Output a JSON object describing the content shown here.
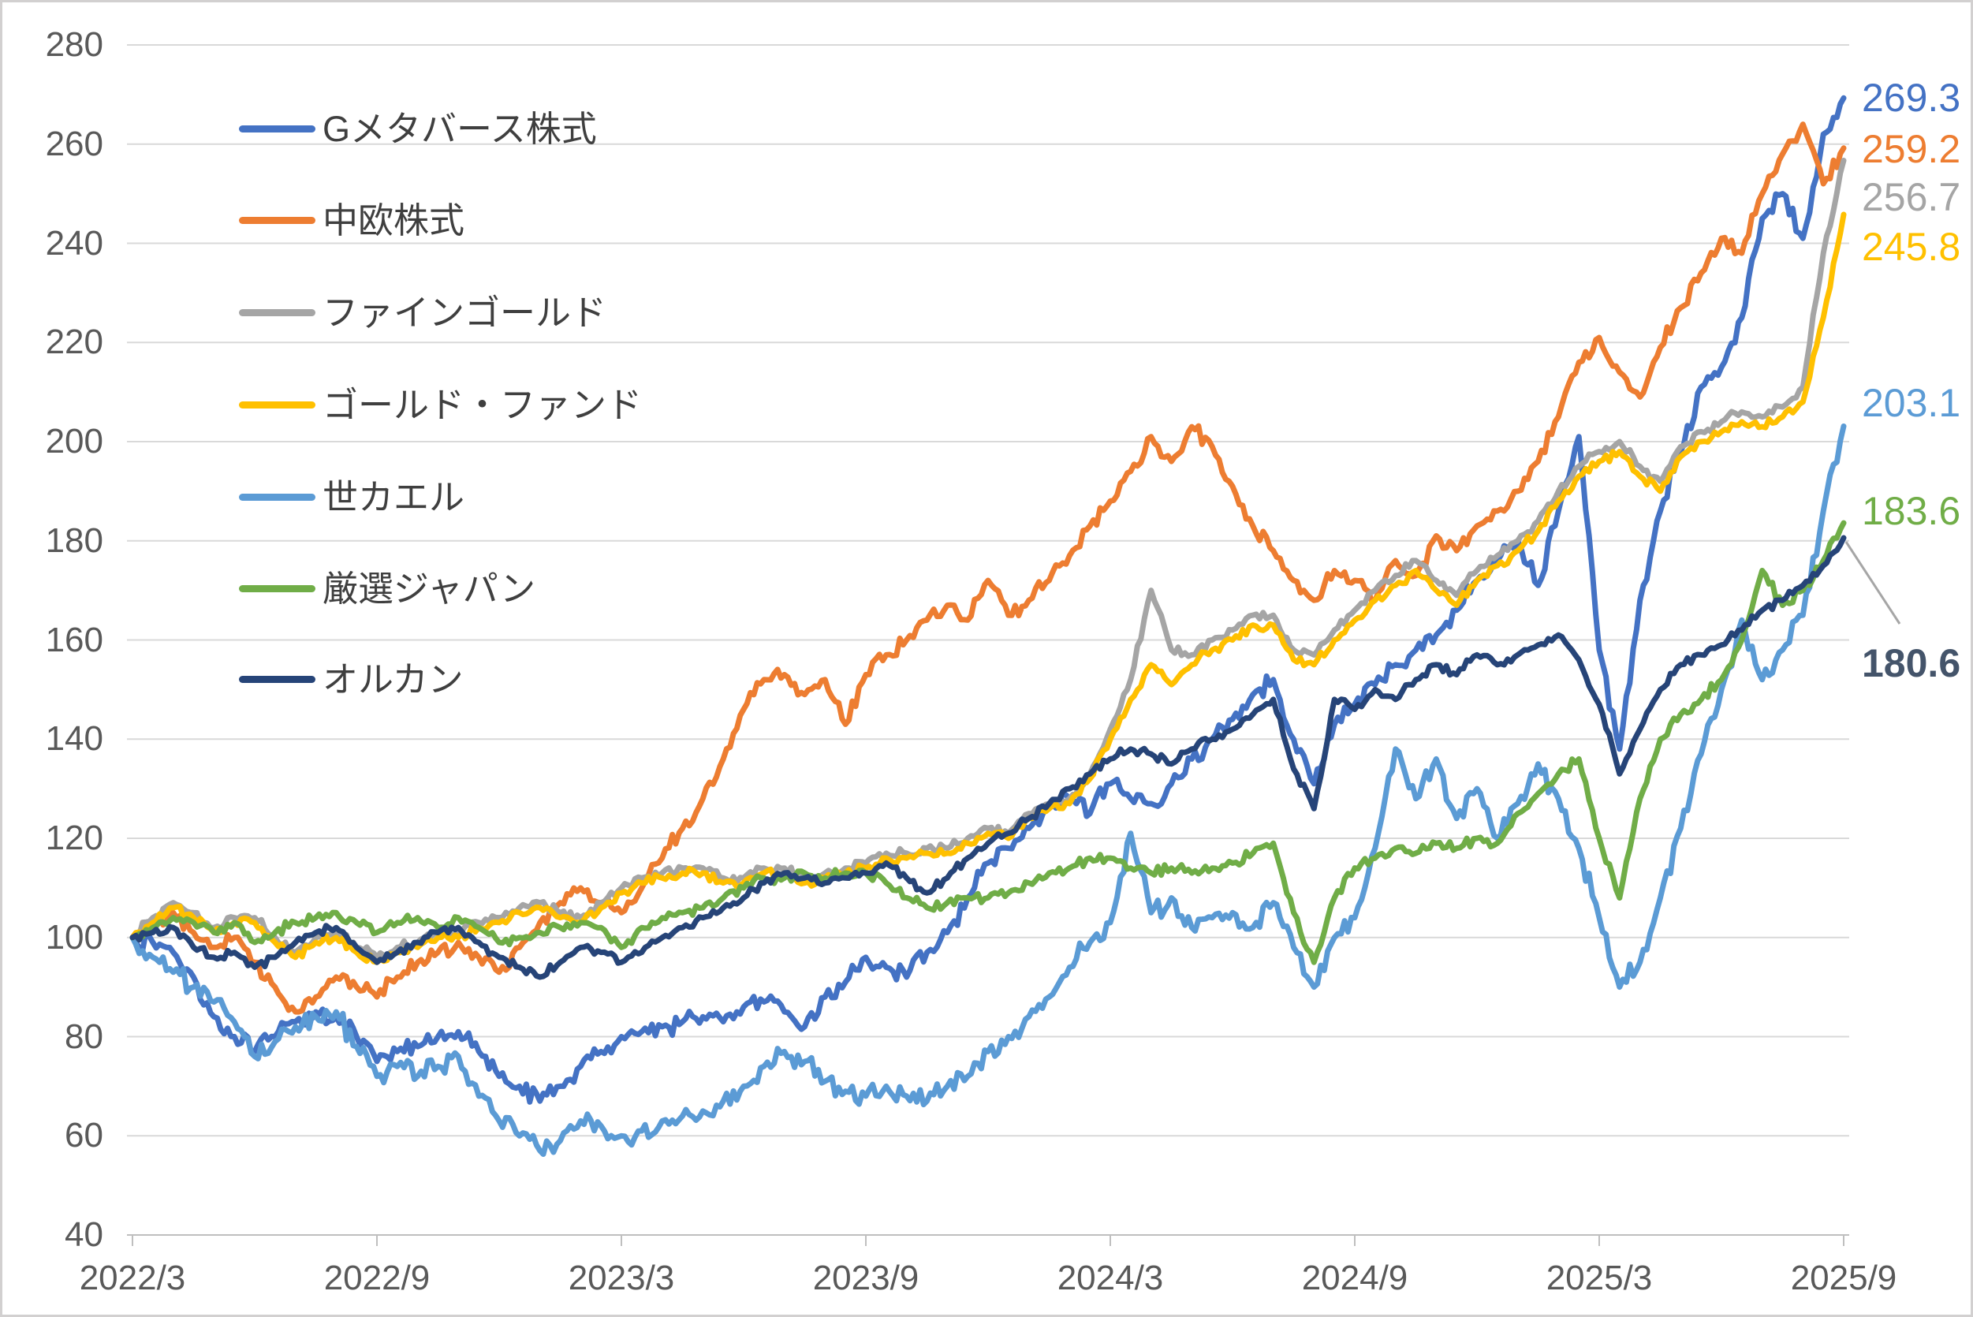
{
  "chart_data": {
    "type": "line",
    "title": "",
    "xlabel": "",
    "ylabel": "",
    "grid": true,
    "legend_position": "overlay-top-left",
    "x_axis": {
      "tick_labels": [
        "2022/3",
        "2022/9",
        "2023/3",
        "2023/9",
        "2024/3",
        "2024/9",
        "2025/3",
        "2025/9"
      ],
      "start": "2022/3",
      "end": "2025/9",
      "points_interval": "semi-monthly"
    },
    "y_axis": {
      "min": 40,
      "max": 280,
      "tick_step": 20,
      "tick_labels": [
        "280",
        "260",
        "240",
        "220",
        "200",
        "180",
        "160",
        "140",
        "120",
        "100",
        "80",
        "60",
        "40"
      ]
    },
    "series": [
      {
        "name": "Gメタバース株式",
        "color": "#4472C4",
        "end_label": "269.3",
        "values": [
          100,
          99,
          97,
          92,
          84,
          80,
          77,
          80,
          83,
          85,
          84,
          80,
          75,
          77,
          78,
          80,
          81,
          77,
          72,
          70,
          67,
          70,
          74,
          77,
          80,
          81,
          82,
          83,
          84,
          83,
          86,
          87,
          85,
          82,
          88,
          91,
          96,
          94,
          92,
          97,
          101,
          108,
          115,
          118,
          122,
          126,
          128,
          125,
          131,
          128,
          127,
          131,
          136,
          140,
          144,
          149,
          152,
          140,
          131,
          143,
          147,
          151,
          155,
          158,
          161,
          166,
          172,
          176,
          180,
          171,
          186,
          201,
          158,
          138,
          168,
          186,
          198,
          211,
          215,
          225,
          245,
          250,
          241,
          262,
          269.3
        ]
      },
      {
        "name": "中欧株式",
        "color": "#ED7D31",
        "end_label": "259.2",
        "values": [
          100,
          103,
          105,
          101,
          98,
          100,
          95,
          90,
          85,
          88,
          92,
          90,
          88,
          92,
          95,
          97,
          99,
          96,
          93,
          98,
          103,
          107,
          110,
          107,
          105,
          110,
          116,
          122,
          128,
          136,
          146,
          152,
          153,
          149,
          152,
          143,
          153,
          157,
          160,
          164,
          167,
          164,
          172,
          165,
          168,
          172,
          177,
          183,
          188,
          194,
          201,
          196,
          203,
          199,
          191,
          183,
          178,
          172,
          168,
          174,
          172,
          168,
          176,
          173,
          181,
          178,
          183,
          186,
          190,
          196,
          205,
          216,
          221,
          214,
          209,
          219,
          227,
          234,
          241,
          238,
          250,
          258,
          264,
          252,
          259.2
        ]
      },
      {
        "name": "ファインゴールド",
        "color": "#A5A5A5",
        "end_label": "256.7",
        "values": [
          100,
          104,
          107,
          105,
          102,
          104,
          104,
          100,
          97,
          100,
          101,
          98,
          96,
          98,
          99,
          101,
          101,
          103,
          104,
          106,
          107,
          105,
          104,
          107,
          110,
          112,
          113,
          114,
          114,
          112,
          112,
          114,
          114,
          112,
          113,
          114,
          115,
          117,
          117,
          118,
          118,
          120,
          122,
          121,
          125,
          127,
          128,
          133,
          142,
          152,
          170,
          158,
          157,
          160,
          162,
          165,
          165,
          158,
          157,
          162,
          166,
          170,
          173,
          176,
          172,
          169,
          174,
          177,
          180,
          184,
          190,
          195,
          198,
          200,
          195,
          192,
          199,
          202,
          204,
          206,
          205,
          207,
          211,
          238,
          256.7
        ]
      },
      {
        "name": "ゴールド・ファンド",
        "color": "#FFC000",
        "end_label": "245.8",
        "values": [
          100,
          103,
          106,
          104,
          101,
          103,
          103,
          99,
          96,
          99,
          100,
          97,
          95,
          97,
          98,
          100,
          100,
          102,
          103,
          105,
          106,
          104,
          103,
          106,
          109,
          111,
          112,
          113,
          113,
          111,
          111,
          113,
          113,
          111,
          112,
          113,
          114,
          116,
          116,
          117,
          117,
          119,
          121,
          120,
          124,
          126,
          127,
          132,
          140,
          148,
          155,
          151,
          155,
          158,
          160,
          163,
          163,
          156,
          155,
          160,
          164,
          168,
          171,
          174,
          170,
          167,
          172,
          175,
          178,
          182,
          188,
          193,
          196,
          198,
          193,
          190,
          197,
          200,
          202,
          204,
          203,
          205,
          208,
          225,
          245.8
        ]
      },
      {
        "name": "世カエル",
        "color": "#5B9BD5",
        "end_label": "203.1",
        "values": [
          100,
          96,
          93,
          90,
          87,
          83,
          76,
          79,
          82,
          84,
          85,
          78,
          72,
          74,
          72,
          74,
          76,
          68,
          63,
          60,
          57,
          59,
          63,
          62,
          60,
          61,
          63,
          64,
          65,
          67,
          70,
          74,
          77,
          75,
          71,
          69,
          68,
          70,
          68,
          67,
          70,
          72,
          77,
          80,
          84,
          88,
          94,
          99,
          103,
          121,
          105,
          108,
          102,
          104,
          105,
          102,
          107,
          98,
          90,
          100,
          104,
          118,
          138,
          128,
          136,
          124,
          130,
          120,
          127,
          135,
          128,
          118,
          104,
          90,
          95,
          108,
          122,
          137,
          150,
          164,
          152,
          158,
          165,
          186,
          203.1
        ]
      },
      {
        "name": "厳選ジャパン",
        "color": "#70AD47",
        "end_label": "183.6",
        "values": [
          100,
          102,
          104,
          103,
          101,
          103,
          99,
          101,
          103,
          104,
          105,
          103,
          101,
          103,
          104,
          102,
          104,
          102,
          99,
          100,
          101,
          102,
          103,
          102,
          98,
          102,
          104,
          105,
          106,
          108,
          110,
          112,
          112,
          113,
          112,
          113,
          113,
          111,
          108,
          106,
          107,
          108,
          108,
          109,
          111,
          113,
          114,
          116,
          116,
          114,
          113,
          114,
          113,
          114,
          115,
          117,
          119,
          105,
          95,
          108,
          114,
          116,
          118,
          117,
          119,
          118,
          120,
          119,
          125,
          129,
          133,
          136,
          120,
          108,
          128,
          140,
          145,
          148,
          152,
          160,
          174,
          167,
          170,
          176,
          183.6
        ]
      },
      {
        "name": "オルカン",
        "color": "#264478",
        "end_label": "180.6",
        "values": [
          100,
          101,
          102,
          98,
          96,
          97,
          94,
          96,
          99,
          101,
          102,
          98,
          95,
          97,
          99,
          101,
          102,
          99,
          96,
          94,
          92,
          95,
          98,
          97,
          95,
          97,
          100,
          102,
          104,
          106,
          108,
          111,
          113,
          112,
          111,
          112,
          113,
          115,
          112,
          109,
          112,
          116,
          119,
          121,
          124,
          127,
          130,
          133,
          136,
          138,
          137,
          135,
          138,
          140,
          142,
          145,
          148,
          134,
          126,
          148,
          146,
          150,
          148,
          152,
          155,
          153,
          157,
          155,
          157,
          159,
          161,
          156,
          147,
          133,
          142,
          150,
          155,
          157,
          159,
          162,
          166,
          168,
          171,
          175,
          180.6
        ]
      }
    ]
  },
  "colors": {
    "gridline": "#D9D9D9",
    "axis_line": "#BFBFBF",
    "axis_text": "#595959",
    "legend_text": "#3F3F3F",
    "leader_line": "#A6A6A6",
    "orukan_label": "#44546A"
  }
}
